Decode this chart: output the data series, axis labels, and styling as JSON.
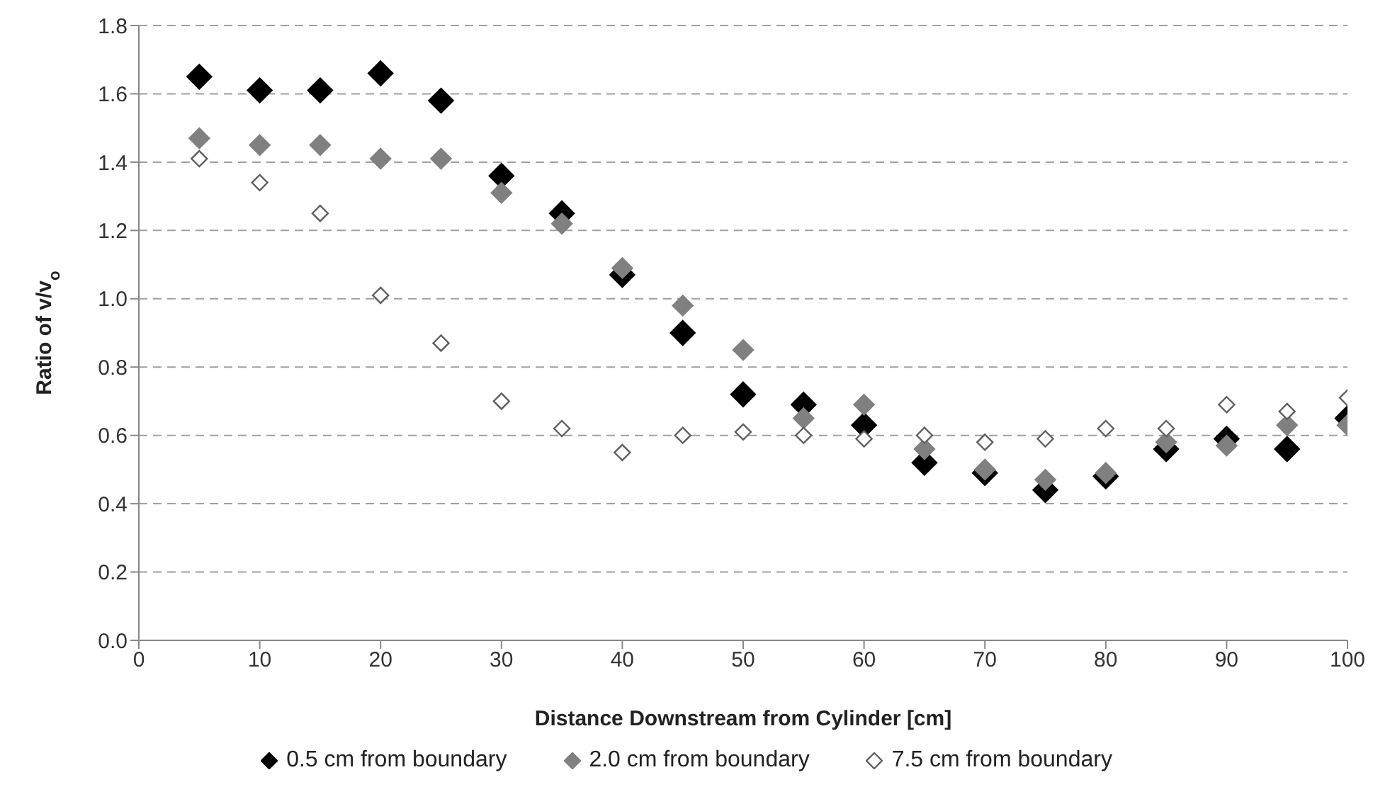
{
  "chart_data": {
    "type": "scatter",
    "xlabel": "Distance Downstream from Cylinder [cm]",
    "ylabel": "Ratio of v/v$_{o}$",
    "x": [
      5,
      10,
      15,
      20,
      25,
      30,
      35,
      40,
      45,
      50,
      55,
      60,
      65,
      70,
      75,
      80,
      85,
      90,
      95,
      100
    ],
    "series": [
      {
        "name": "0.5 cm from boundary",
        "color": "#000000",
        "values": [
          1.65,
          1.61,
          1.61,
          1.66,
          1.58,
          1.36,
          1.25,
          1.07,
          0.9,
          0.72,
          0.69,
          0.63,
          0.52,
          0.49,
          0.44,
          0.48,
          0.56,
          0.59,
          0.56,
          0.65
        ]
      },
      {
        "name": "2.0 cm from boundary",
        "color": "#808080",
        "values": [
          1.47,
          1.45,
          1.45,
          1.41,
          1.41,
          1.31,
          1.22,
          1.09,
          0.98,
          0.85,
          0.65,
          0.69,
          0.56,
          0.5,
          0.47,
          0.49,
          0.58,
          0.57,
          0.63,
          0.63
        ]
      },
      {
        "name": "7.5 cm from boundary",
        "color": "#ffffff",
        "values": [
          1.41,
          1.34,
          1.25,
          1.01,
          0.87,
          0.7,
          0.62,
          0.55,
          0.6,
          0.61,
          0.6,
          0.59,
          0.6,
          0.58,
          0.59,
          0.62,
          0.62,
          0.69,
          0.67,
          0.71
        ]
      }
    ],
    "xlim": [
      0,
      100
    ],
    "xticks": [
      0,
      10,
      20,
      30,
      40,
      50,
      60,
      70,
      80,
      90,
      100
    ],
    "ylim": [
      0,
      1.8
    ],
    "yticks": [
      {
        "value": 0,
        "label": "0.0"
      },
      {
        "value": 0.2,
        "label": "0.2"
      },
      {
        "value": 0.4,
        "label": "0.4"
      },
      {
        "value": 0.6,
        "label": "0.6"
      },
      {
        "value": 0.8,
        "label": "0.8"
      },
      {
        "value": 1,
        "label": "1.0"
      },
      {
        "value": 1.2,
        "label": "1.2"
      },
      {
        "value": 1.4,
        "label": "1.4"
      },
      {
        "value": 1.6,
        "label": "1.6"
      },
      {
        "value": 1.8,
        "label": "1.8"
      }
    ],
    "grid": "y",
    "legend": "bottom",
    "marker": "diamond"
  }
}
